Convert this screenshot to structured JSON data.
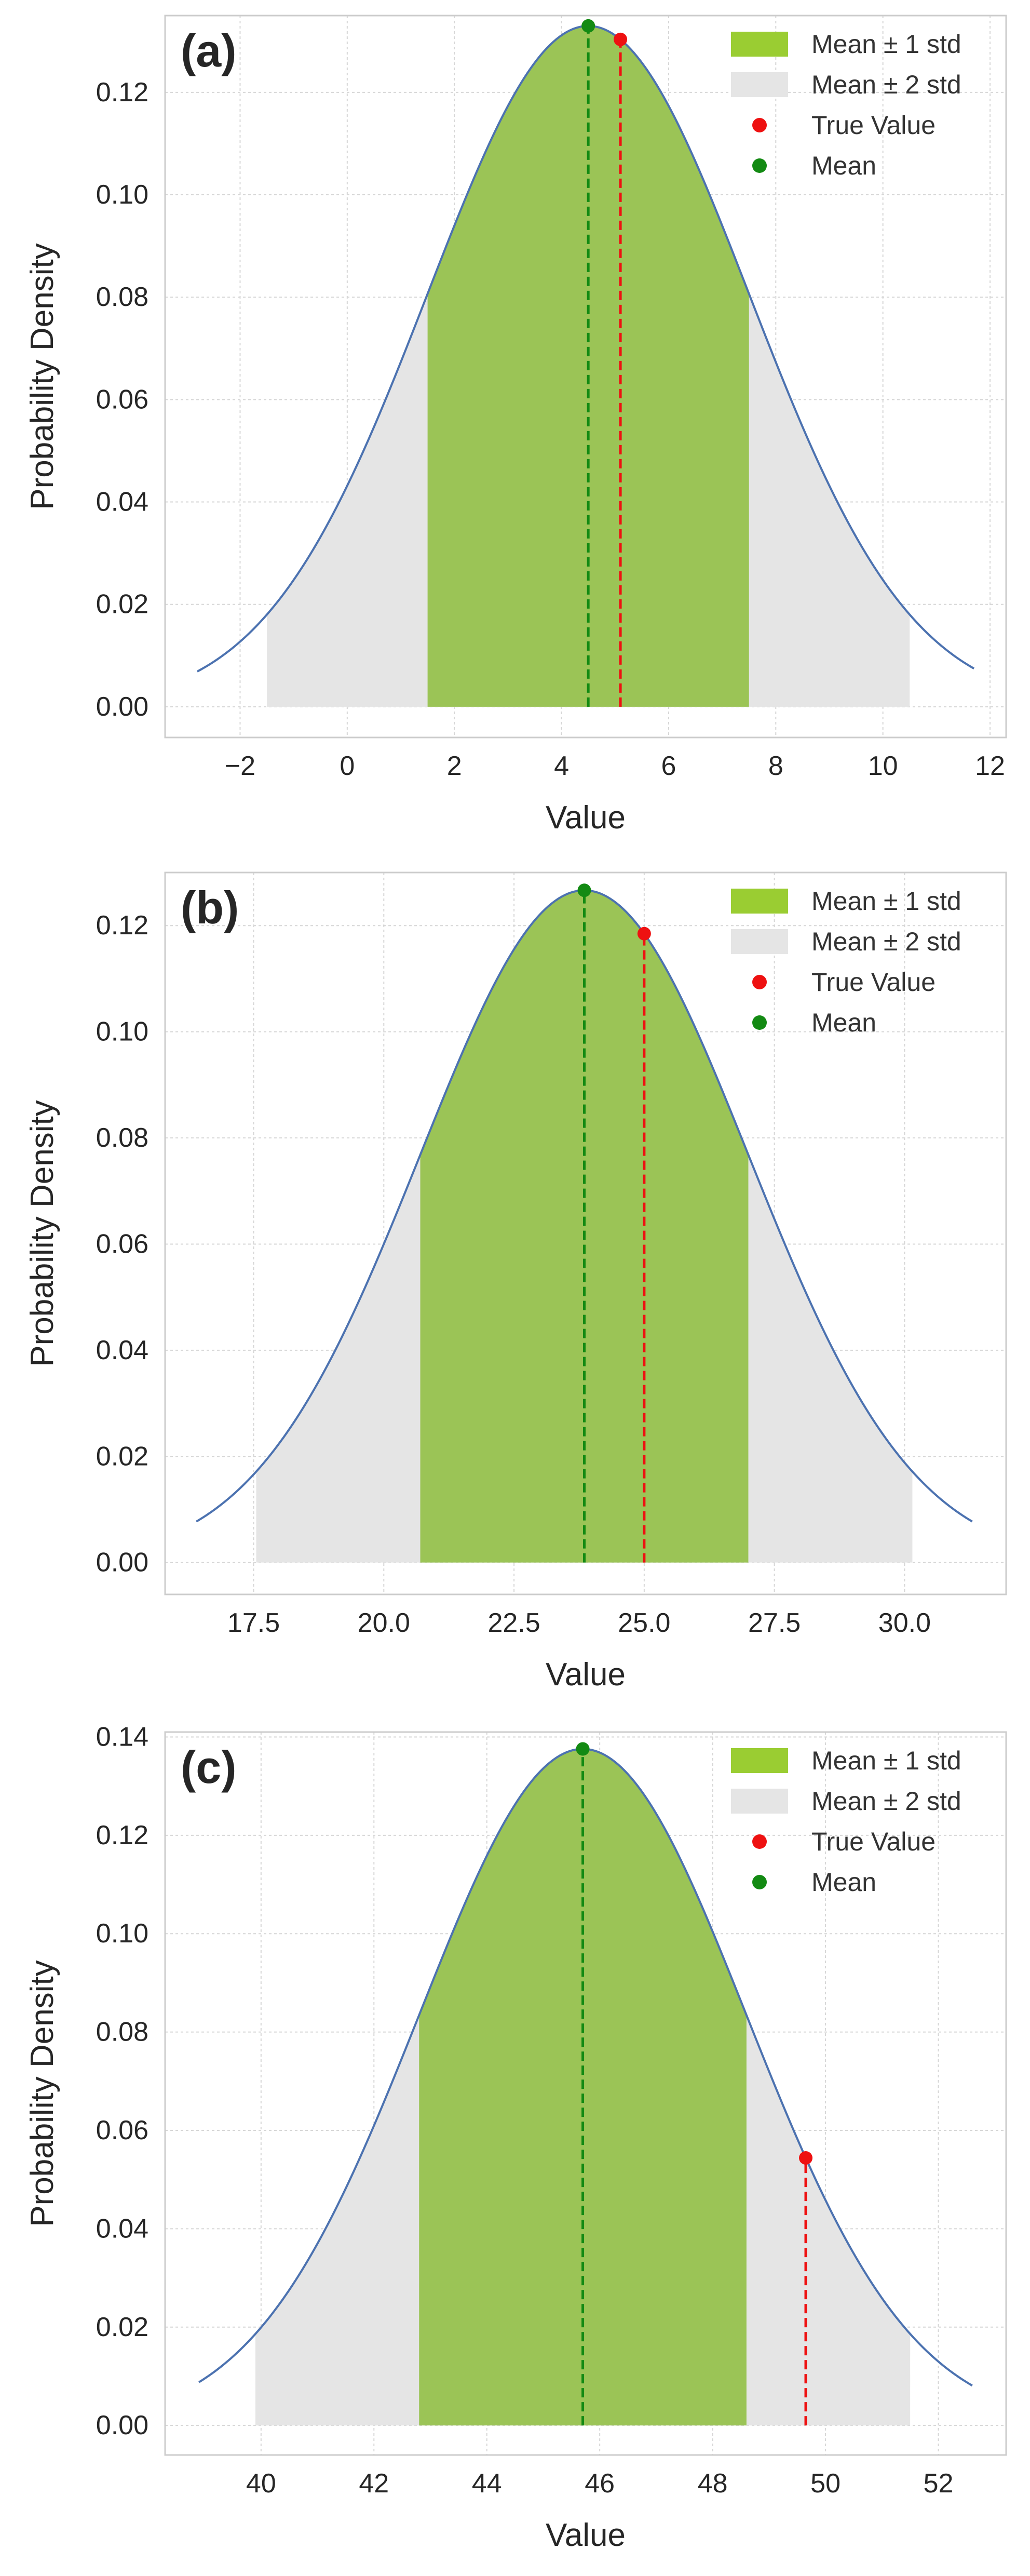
{
  "colors": {
    "curve": "#4c72b0",
    "band1": "#9bc456",
    "band2": "#e5e5e5",
    "mean": "#138a13",
    "true_value": "#ee1111",
    "legend_band1": "#9acd32"
  },
  "chart_data": [
    {
      "type": "area",
      "panel_label": "(a)",
      "xlabel": "Value",
      "ylabel": "Probability Density",
      "mean": 4.5,
      "std": 3.0,
      "true_value": 5.1,
      "x_range": [
        -2.8,
        11.7
      ],
      "xlim": [
        -3.4,
        12.3
      ],
      "ylim": [
        -0.006,
        0.135
      ],
      "xticks": [
        -2,
        0,
        2,
        4,
        6,
        8,
        10,
        12
      ],
      "xtick_labels": [
        "−2",
        "0",
        "2",
        "4",
        "6",
        "8",
        "10",
        "12"
      ],
      "yticks": [
        0.0,
        0.02,
        0.04,
        0.06,
        0.08,
        0.1,
        0.12
      ],
      "ytick_labels": [
        "0.00",
        "0.02",
        "0.04",
        "0.06",
        "0.08",
        "0.10",
        "0.12"
      ],
      "legend": [
        "Mean ± 1 std",
        "Mean ± 2 std",
        "True Value",
        "Mean"
      ],
      "legend_position": "top-right",
      "grid": true
    },
    {
      "type": "area",
      "panel_label": "(b)",
      "xlabel": "Value",
      "ylabel": "Probability Density",
      "mean": 23.85,
      "std": 3.15,
      "true_value": 25.0,
      "x_range": [
        16.4,
        31.3
      ],
      "xlim": [
        15.8,
        31.95
      ],
      "ylim": [
        -0.006,
        0.13
      ],
      "xticks": [
        17.5,
        20.0,
        22.5,
        25.0,
        27.5,
        30.0
      ],
      "xtick_labels": [
        "17.5",
        "20.0",
        "22.5",
        "25.0",
        "27.5",
        "30.0"
      ],
      "yticks": [
        0.0,
        0.02,
        0.04,
        0.06,
        0.08,
        0.1,
        0.12
      ],
      "ytick_labels": [
        "0.00",
        "0.02",
        "0.04",
        "0.06",
        "0.08",
        "0.10",
        "0.12"
      ],
      "legend": [
        "Mean ± 1 std",
        "Mean ± 2 std",
        "True Value",
        "Mean"
      ],
      "legend_position": "top-right",
      "grid": true
    },
    {
      "type": "area",
      "panel_label": "(c)",
      "xlabel": "Value",
      "ylabel": "Probability Density",
      "mean": 45.7,
      "std": 2.9,
      "true_value": 49.65,
      "x_range": [
        38.9,
        52.6
      ],
      "xlim": [
        38.3,
        53.2
      ],
      "ylim": [
        -0.006,
        0.141
      ],
      "xticks": [
        40,
        42,
        44,
        46,
        48,
        50,
        52
      ],
      "xtick_labels": [
        "40",
        "42",
        "44",
        "46",
        "48",
        "50",
        "52"
      ],
      "yticks": [
        0.0,
        0.02,
        0.04,
        0.06,
        0.08,
        0.1,
        0.12,
        0.14
      ],
      "ytick_labels": [
        "0.00",
        "0.02",
        "0.04",
        "0.06",
        "0.08",
        "0.10",
        "0.12",
        "0.14"
      ],
      "legend": [
        "Mean ± 1 std",
        "Mean ± 2 std",
        "True Value",
        "Mean"
      ],
      "legend_position": "top-right",
      "grid": true
    }
  ]
}
